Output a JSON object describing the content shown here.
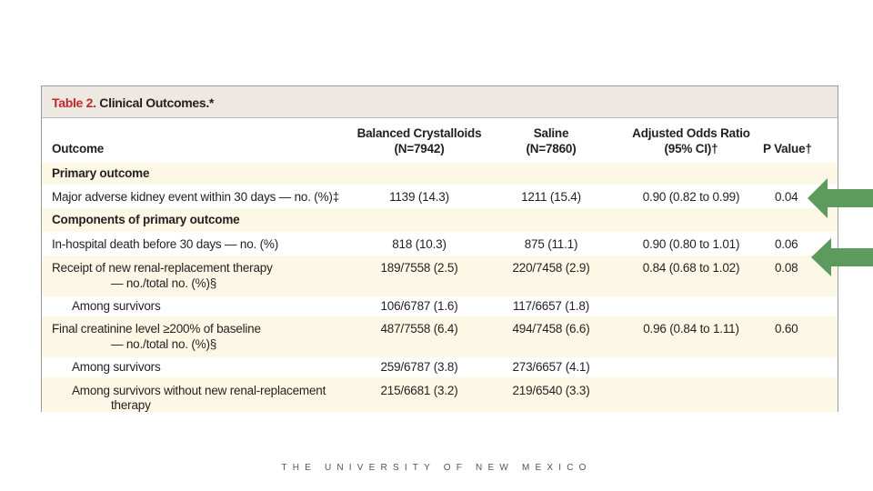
{
  "table": {
    "caption_num": "Table 2.",
    "caption_text": "Clinical Outcomes.*",
    "headers": {
      "outcome": "Outcome",
      "balanced_l1": "Balanced Crystalloids",
      "balanced_l2": "(N=7942)",
      "saline_l1": "Saline",
      "saline_l2": "(N=7860)",
      "or_l1": "Adjusted Odds Ratio",
      "or_l2": "(95% CI)†",
      "p": "P Value†"
    },
    "rows": [
      {
        "label": "Primary outcome",
        "heading": true
      },
      {
        "label": "Major adverse kidney event within 30 days — no. (%)‡",
        "balanced": "1139 (14.3)",
        "saline": "1211 (15.4)",
        "or": "0.90 (0.82 to 0.99)",
        "p": "0.04"
      },
      {
        "label": "Components of primary outcome",
        "heading": true
      },
      {
        "label": "In-hospital death before 30 days — no. (%)",
        "balanced": "818 (10.3)",
        "saline": "875 (11.1)",
        "or": "0.90 (0.80 to 1.01)",
        "p": "0.06"
      },
      {
        "label": "Receipt of new renal-replacement therapy",
        "label2": "— no./total no. (%)§",
        "balanced": "189/7558 (2.5)",
        "saline": "220/7458 (2.9)",
        "or": "0.84 (0.68 to 1.02)",
        "p": "0.08"
      },
      {
        "label": "Among survivors",
        "balanced": "106/6787 (1.6)",
        "saline": "117/6657 (1.8)",
        "or": "",
        "p": ""
      },
      {
        "label": "Final creatinine level ≥200% of baseline",
        "label2": "— no./total no. (%)§",
        "balanced": "487/7558 (6.4)",
        "saline": "494/7458 (6.6)",
        "or": "0.96 (0.84 to 1.11)",
        "p": "0.60"
      },
      {
        "label": "Among survivors",
        "balanced": "259/6787 (3.8)",
        "saline": "273/6657 (4.1)",
        "or": "",
        "p": ""
      },
      {
        "label": "Among survivors without new renal-replacement",
        "label2": "therapy",
        "balanced": "215/6681 (3.2)",
        "saline": "219/6540 (3.3)",
        "or": "",
        "p": ""
      }
    ]
  },
  "footer": "THE UNIVERSITY OF NEW MEXICO",
  "colors": {
    "arrow": "#5c9a5e",
    "caption_num": "#c0272d",
    "shade": "#fdf8e5"
  }
}
